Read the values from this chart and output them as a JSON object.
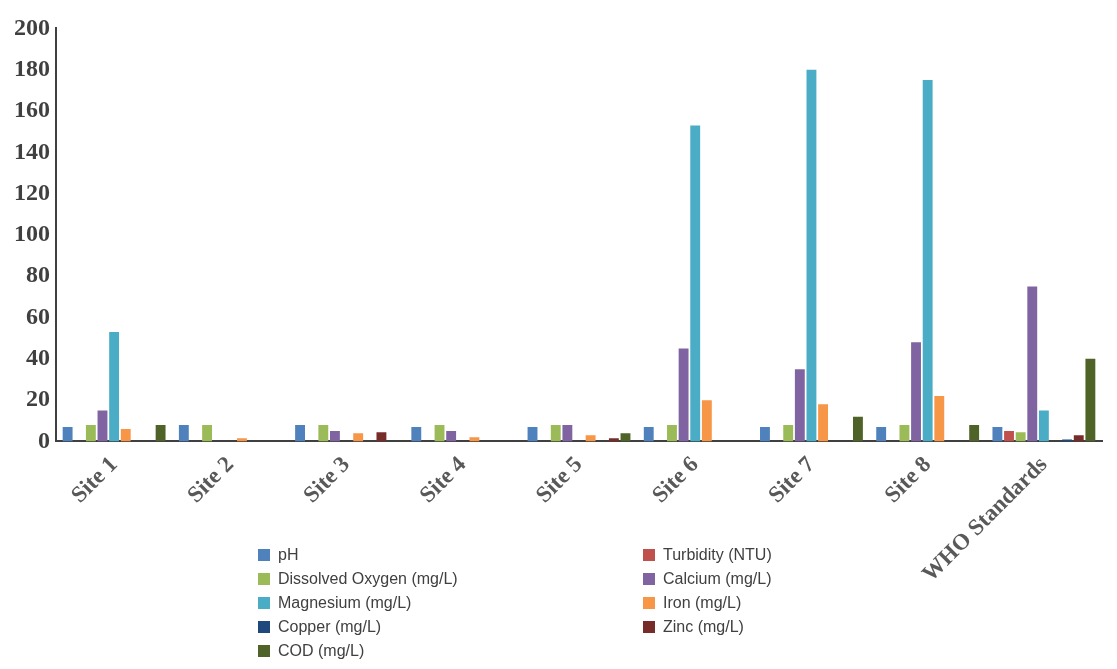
{
  "chart_data": {
    "type": "bar",
    "categories": [
      "Site 1",
      "Site 2",
      "Site 3",
      "Site 4",
      "Site 5",
      "Site 6",
      "Site 7",
      "Site 8",
      "WHO Standards"
    ],
    "series": [
      {
        "name": "pH",
        "color": "#4f81bd",
        "values": [
          7,
          8,
          8,
          7,
          7,
          7,
          7,
          7,
          7
        ]
      },
      {
        "name": "Turbidity (NTU)",
        "color": "#c0504d",
        "values": [
          null,
          null,
          null,
          null,
          null,
          null,
          null,
          null,
          5
        ]
      },
      {
        "name": "Dissolved Oxygen (mg/L)",
        "color": "#9bbb59",
        "values": [
          8,
          8,
          8,
          8,
          8,
          8,
          8,
          8,
          4.5
        ]
      },
      {
        "name": "Calcium (mg/L)",
        "color": "#8064a2",
        "values": [
          15,
          null,
          5,
          5,
          8,
          45,
          35,
          48,
          75
        ]
      },
      {
        "name": "Magnesium (mg/L)",
        "color": "#4bacc6",
        "values": [
          53,
          null,
          null,
          null,
          null,
          153,
          180,
          175,
          15
        ]
      },
      {
        "name": "Iron (mg/L)",
        "color": "#f79646",
        "values": [
          6,
          1.5,
          4,
          2,
          3,
          20,
          18,
          22,
          null
        ]
      },
      {
        "name": "Copper (mg/L)",
        "color": "#1f497d",
        "values": [
          null,
          null,
          null,
          null,
          null,
          null,
          null,
          null,
          1
        ]
      },
      {
        "name": "Zinc (mg/L)",
        "color": "#772c2a",
        "values": [
          null,
          null,
          4.5,
          null,
          1.5,
          null,
          null,
          null,
          3
        ]
      },
      {
        "name": "COD (mg/L)",
        "color": "#4f6228",
        "values": [
          8,
          null,
          null,
          null,
          4,
          null,
          12,
          8,
          40
        ]
      }
    ],
    "ylim": [
      0,
      200
    ],
    "yticks": [
      0,
      20,
      40,
      60,
      80,
      100,
      120,
      140,
      160,
      180,
      200
    ],
    "grid": false,
    "legend": "bottom"
  }
}
